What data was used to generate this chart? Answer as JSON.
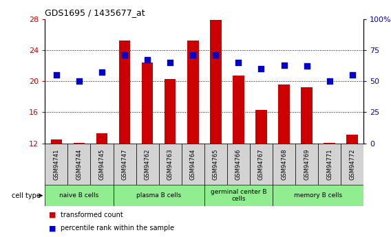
{
  "title": "GDS1695 / 1435677_at",
  "samples": [
    "GSM94741",
    "GSM94744",
    "GSM94745",
    "GSM94747",
    "GSM94762",
    "GSM94763",
    "GSM94764",
    "GSM94765",
    "GSM94766",
    "GSM94767",
    "GSM94768",
    "GSM94769",
    "GSM94771",
    "GSM94772"
  ],
  "transformed_count": [
    12.5,
    12.1,
    13.3,
    25.2,
    22.4,
    20.3,
    25.2,
    27.9,
    20.7,
    16.3,
    19.6,
    19.2,
    12.05,
    13.1
  ],
  "percentile_rank": [
    55,
    50,
    57,
    71,
    67,
    65,
    71,
    71,
    65,
    60,
    63,
    62,
    50,
    55
  ],
  "ylim_left": [
    12,
    28
  ],
  "ylim_right": [
    0,
    100
  ],
  "yticks_left": [
    12,
    16,
    20,
    24,
    28
  ],
  "yticks_right": [
    0,
    25,
    50,
    75,
    100
  ],
  "bar_color": "#cc0000",
  "dot_color": "#0000cc",
  "cell_groups": [
    {
      "label": "naive B cells",
      "start": 0,
      "end": 3
    },
    {
      "label": "plasma B cells",
      "start": 3,
      "end": 7
    },
    {
      "label": "germinal center B\ncells",
      "start": 7,
      "end": 10
    },
    {
      "label": "memory B cells",
      "start": 10,
      "end": 14
    }
  ],
  "legend_bar_label": "transformed count",
  "legend_dot_label": "percentile rank within the sample",
  "xlabel_cell_type": "cell type",
  "tick_label_color_left": "#cc0000",
  "tick_label_color_right": "#0000cc",
  "dot_size": 30,
  "bar_bottom": 12,
  "sample_box_color": "#d3d3d3",
  "group_box_color": "#90ee90",
  "plot_bg": "#ffffff"
}
